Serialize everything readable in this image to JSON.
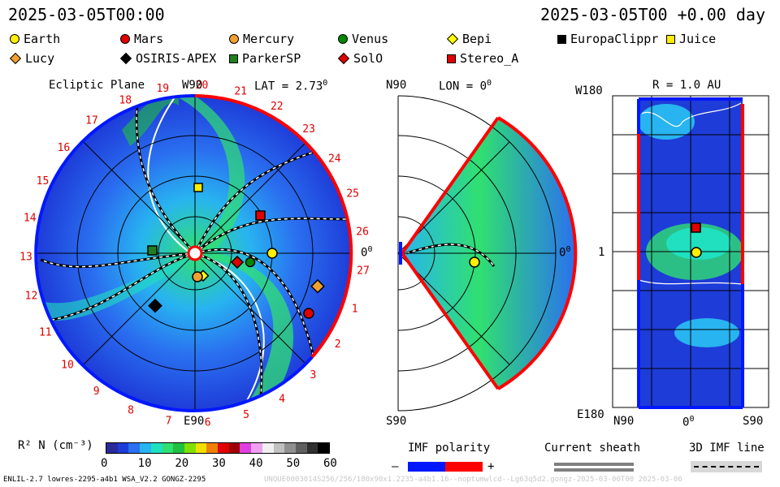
{
  "header": {
    "left_date": "2025-03-05T00:00",
    "right_date": "2025-03-05T00 +0.00 day"
  },
  "legend_items": [
    {
      "name": "Earth",
      "shape": "circle",
      "color": "#ffee00"
    },
    {
      "name": "Mars",
      "shape": "circle",
      "color": "#e00000"
    },
    {
      "name": "Mercury",
      "shape": "circle",
      "color": "#f0a030"
    },
    {
      "name": "Venus",
      "shape": "circle",
      "color": "#008800"
    },
    {
      "name": "Bepi",
      "shape": "diamond",
      "color": "#ffff00"
    },
    {
      "name": "EuropaClippr",
      "shape": "square",
      "color": "#000000"
    },
    {
      "name": "Juice",
      "shape": "square",
      "color": "#ffee00"
    },
    {
      "name": "Lucy",
      "shape": "diamond",
      "color": "#f0a030"
    },
    {
      "name": "OSIRIS-APEX",
      "shape": "diamond",
      "color": "#000000"
    },
    {
      "name": "ParkerSP",
      "shape": "square",
      "color": "#208020"
    },
    {
      "name": "SolO",
      "shape": "diamond",
      "color": "#e00000"
    },
    {
      "name": "Stereo_A",
      "shape": "square",
      "color": "#e00000"
    }
  ],
  "panels": {
    "ecliptic": {
      "title": "Ecliptic Plane",
      "top_label": "W90",
      "lat_label": "LAT = 2.73",
      "lat_sup": "0",
      "bottom_label": "E90",
      "right_label": "0",
      "right_sup": "0",
      "carrington_ticks": [
        "19",
        "20",
        "21",
        "22",
        "23",
        "24",
        "25",
        "26",
        "27",
        "1",
        "2",
        "3",
        "4",
        "5",
        "6",
        "7",
        "8",
        "9",
        "10",
        "11",
        "12",
        "13",
        "14",
        "15",
        "16",
        "17",
        "18"
      ]
    },
    "meridional": {
      "top_left": "N90",
      "lon_label": "LON = 0",
      "lon_sup": "0",
      "bottom_left": "S90",
      "right_label": "0",
      "right_sup": "0"
    },
    "radial": {
      "r_label": "R = 1.0 AU",
      "top_left": "W180",
      "mid_left": "1",
      "bottom_left": "E180",
      "x_left": "N90",
      "x_mid": "0",
      "x_mid_sup": "0",
      "x_right": "S90"
    }
  },
  "colorbar": {
    "label": "R² N (cm⁻³)",
    "ticks": [
      "0",
      "10",
      "20",
      "30",
      "40",
      "50",
      "60"
    ],
    "colors": [
      "#2a2a9a",
      "#1e3cd8",
      "#2a70f0",
      "#28b4f0",
      "#20e0c0",
      "#30e070",
      "#20c040",
      "#80e000",
      "#f0e000",
      "#f08000",
      "#e00000",
      "#a00000",
      "#e040e0",
      "#f0a0f0",
      "#f0f0f0",
      "#c0c0c0",
      "#909090",
      "#606060",
      "#303030",
      "#000000"
    ]
  },
  "imf_polarity": {
    "label": "IMF polarity",
    "minus": "–",
    "plus": "+",
    "neg_color": "#0018ff",
    "pos_color": "#ff0000"
  },
  "current_sheath": {
    "label": "Current sheath"
  },
  "imf_line": {
    "label": "3D IMF line"
  },
  "footer": {
    "left": "ENLIL-2.7 lowres-2295-a4b1 WSA_V2.2 GONGZ-2295",
    "right": "UNQUE0003014S256/256/180x90x1.2235-a4b1.16--noptumwlcd--Lg63q5d2.gongz-2025-03-00T00  2025-03-06"
  }
}
